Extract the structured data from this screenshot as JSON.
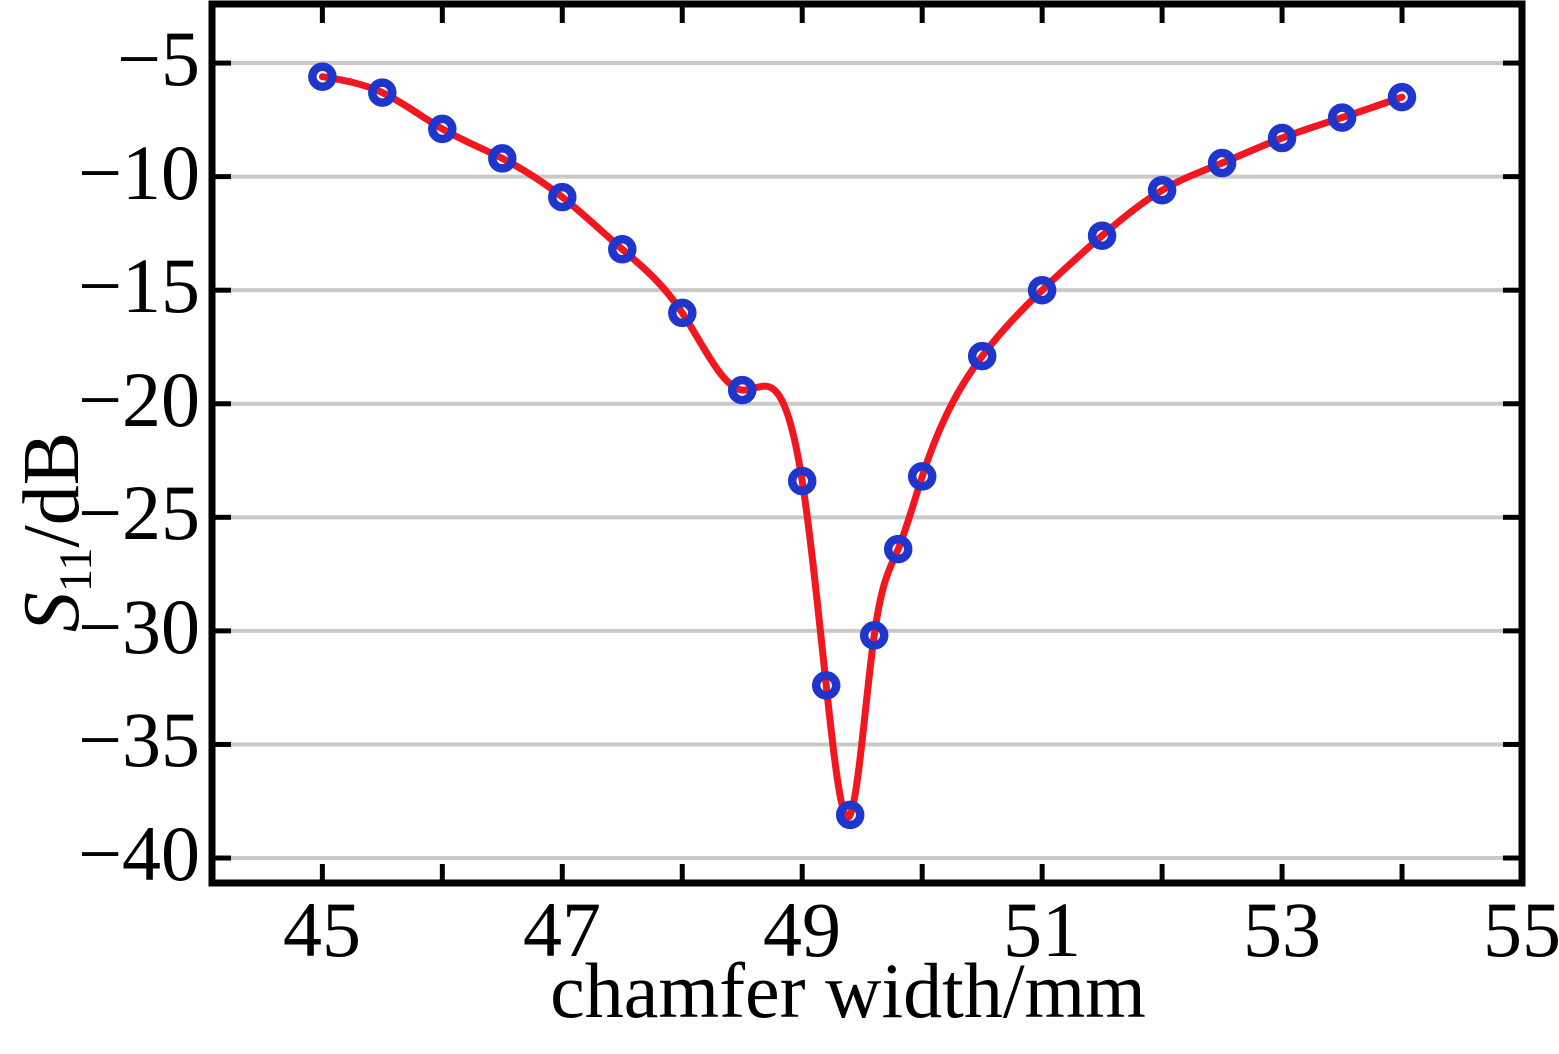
{
  "chart_data": {
    "type": "line",
    "title": "",
    "xlabel": "chamfer width/mm",
    "ylabel": {
      "symbol": "S",
      "subscript": "11",
      "unit": "/dB"
    },
    "xlim": [
      44.08,
      55
    ],
    "ylim": [
      -41.1,
      -2.4
    ],
    "x_ticks": [
      {
        "v": 45,
        "label": "45"
      },
      {
        "v": 47,
        "label": "47"
      },
      {
        "v": 49,
        "label": "49"
      },
      {
        "v": 51,
        "label": "51"
      },
      {
        "v": 53,
        "label": "53"
      },
      {
        "v": 55,
        "label": "55"
      }
    ],
    "x_minor_ticks": [
      46,
      48,
      50,
      52,
      54
    ],
    "y_ticks": [
      {
        "v": -5,
        "label": "−5"
      },
      {
        "v": -10,
        "label": "−10"
      },
      {
        "v": -15,
        "label": "−15"
      },
      {
        "v": -20,
        "label": "−20"
      },
      {
        "v": -25,
        "label": "−25"
      },
      {
        "v": -30,
        "label": "−30"
      },
      {
        "v": -35,
        "label": "−35"
      },
      {
        "v": -40,
        "label": "−40"
      }
    ],
    "grid": "horizontal-only",
    "legend": "none",
    "colors": {
      "line": "#f2161f",
      "marker": "#1e36cc",
      "grid": "#c9c9c9",
      "axis": "#000000",
      "background": "#ffffff"
    },
    "series": [
      {
        "marker": "open-circle",
        "line_color": "#f2161f",
        "marker_color": "#1e36cc",
        "points": [
          [
            45.0,
            -5.6
          ],
          [
            45.5,
            -6.3
          ],
          [
            46.0,
            -7.9
          ],
          [
            46.5,
            -9.2
          ],
          [
            47.0,
            -10.9
          ],
          [
            47.5,
            -13.2
          ],
          [
            48.0,
            -16.0
          ],
          [
            48.5,
            -19.4
          ],
          [
            49.0,
            -23.4
          ],
          [
            49.2,
            -32.4
          ],
          [
            49.4,
            -38.1
          ],
          [
            49.6,
            -30.2
          ],
          [
            49.8,
            -26.4
          ],
          [
            50.0,
            -23.2
          ],
          [
            50.5,
            -17.9
          ],
          [
            51.0,
            -15.0
          ],
          [
            51.5,
            -12.6
          ],
          [
            52.0,
            -10.6
          ],
          [
            52.5,
            -9.4
          ],
          [
            53.0,
            -8.3
          ],
          [
            53.5,
            -7.4
          ],
          [
            54.0,
            -6.5
          ]
        ]
      }
    ]
  }
}
